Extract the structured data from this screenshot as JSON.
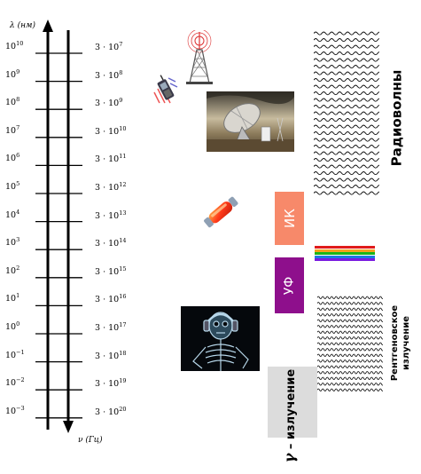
{
  "axes": {
    "wavelength_label": "λ (нм)",
    "frequency_label": "ν (Гц)"
  },
  "wavelength_ticks": [
    {
      "base": "10",
      "exp": "10"
    },
    {
      "base": "10",
      "exp": "9"
    },
    {
      "base": "10",
      "exp": "8"
    },
    {
      "base": "10",
      "exp": "7"
    },
    {
      "base": "10",
      "exp": "6"
    },
    {
      "base": "10",
      "exp": "5"
    },
    {
      "base": "10",
      "exp": "4"
    },
    {
      "base": "10",
      "exp": "3"
    },
    {
      "base": "10",
      "exp": "2"
    },
    {
      "base": "10",
      "exp": "1"
    },
    {
      "base": "10",
      "exp": "0"
    },
    {
      "base": "10",
      "exp": "−1"
    },
    {
      "base": "10",
      "exp": "−2"
    },
    {
      "base": "10",
      "exp": "−3"
    }
  ],
  "frequency_ticks": [
    {
      "base": "3 · 10",
      "exp": "7"
    },
    {
      "base": "3 · 10",
      "exp": "8"
    },
    {
      "base": "3 · 10",
      "exp": "9"
    },
    {
      "base": "3 · 10",
      "exp": "10"
    },
    {
      "base": "3 · 10",
      "exp": "11"
    },
    {
      "base": "3 · 10",
      "exp": "12"
    },
    {
      "base": "3 · 10",
      "exp": "13"
    },
    {
      "base": "3 · 10",
      "exp": "14"
    },
    {
      "base": "3 · 10",
      "exp": "15"
    },
    {
      "base": "3 · 10",
      "exp": "16"
    },
    {
      "base": "3 · 10",
      "exp": "17"
    },
    {
      "base": "3 · 10",
      "exp": "18"
    },
    {
      "base": "3 · 10",
      "exp": "19"
    },
    {
      "base": "3 · 10",
      "exp": "20"
    }
  ],
  "bands": {
    "radio": "Радиоволны",
    "ir": "ИК",
    "uv": "УФ",
    "xray_line1": "Рентгеновское",
    "xray_line2": "излучение",
    "gamma_symbol": "γ",
    "gamma_text": " – излучение"
  },
  "colors": {
    "ir": "#f7896a",
    "uv": "#8e0f8c",
    "gamma": "#dcdcdc",
    "visible": [
      "#e01b1b",
      "#f7a21b",
      "#1bb51b",
      "#1b7be0",
      "#7a1be0"
    ]
  },
  "icons": [
    "tv-tower-icon",
    "mobile-phone-icon",
    "radio-telescope-photo",
    "infrared-lamp-icon",
    "xray-skeleton-photo"
  ]
}
